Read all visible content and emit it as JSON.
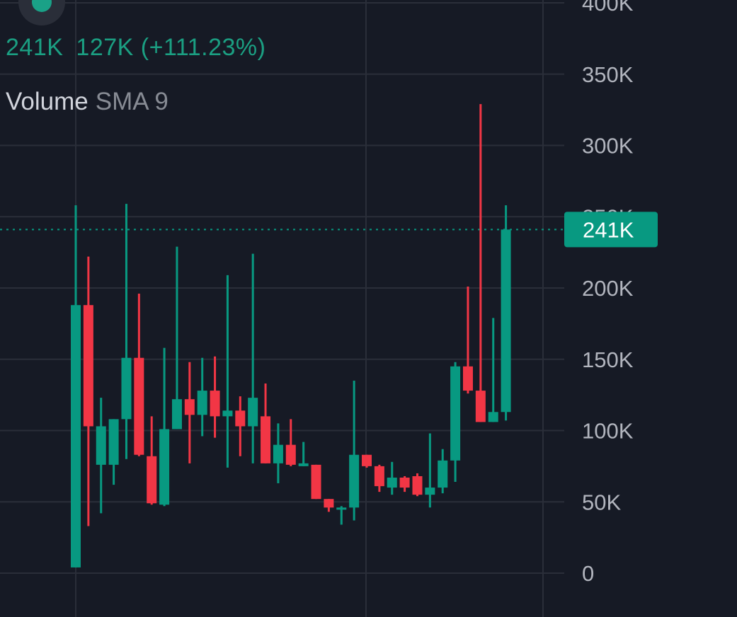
{
  "header": {
    "volume_value": "241K",
    "sma_value": "127K",
    "change_pct": "(+111.23%)",
    "indicator_name": "Volume",
    "indicator_params": "SMA 9"
  },
  "colors": {
    "background": "#161a25",
    "grid": "#2a2e39",
    "up": "#089981",
    "down": "#f23645",
    "axis_text": "#b2b5be",
    "badge": "#089981"
  },
  "chart_data": {
    "type": "candlestick",
    "title": "",
    "xlabel": "",
    "ylabel": "",
    "ylim": [
      0,
      400000
    ],
    "y_ticks": [
      0,
      50000,
      100000,
      150000,
      200000,
      250000,
      300000,
      350000,
      400000
    ],
    "y_tick_labels": [
      "0",
      "50K",
      "100K",
      "150K",
      "200K",
      "250K",
      "300K",
      "350K",
      "400K"
    ],
    "last_value": 241000,
    "last_value_label": "241K",
    "grid": true,
    "candles": [
      {
        "open": 4000,
        "high": 258000,
        "low": 4000,
        "close": 188000
      },
      {
        "open": 188000,
        "high": 222000,
        "low": 33000,
        "close": 103000
      },
      {
        "open": 76000,
        "high": 123000,
        "low": 42000,
        "close": 103000
      },
      {
        "open": 76000,
        "high": 108000,
        "low": 62000,
        "close": 108000
      },
      {
        "open": 108000,
        "high": 259000,
        "low": 80000,
        "close": 151000
      },
      {
        "open": 151000,
        "high": 196000,
        "low": 82000,
        "close": 83000
      },
      {
        "open": 82000,
        "high": 110000,
        "low": 48000,
        "close": 49000
      },
      {
        "open": 48000,
        "high": 158000,
        "low": 47000,
        "close": 101000
      },
      {
        "open": 101000,
        "high": 229000,
        "low": 101000,
        "close": 122000
      },
      {
        "open": 122000,
        "high": 148000,
        "low": 77000,
        "close": 111000
      },
      {
        "open": 111000,
        "high": 151000,
        "low": 96000,
        "close": 128000
      },
      {
        "open": 128000,
        "high": 152000,
        "low": 95000,
        "close": 110000
      },
      {
        "open": 110000,
        "high": 209000,
        "low": 74000,
        "close": 114000
      },
      {
        "open": 114000,
        "high": 124000,
        "low": 82000,
        "close": 103000
      },
      {
        "open": 103000,
        "high": 224000,
        "low": 77000,
        "close": 123000
      },
      {
        "open": 110000,
        "high": 133000,
        "low": 77000,
        "close": 77000
      },
      {
        "open": 77000,
        "high": 105000,
        "low": 63000,
        "close": 90000
      },
      {
        "open": 90000,
        "high": 108000,
        "low": 75000,
        "close": 76000
      },
      {
        "open": 75000,
        "high": 92000,
        "low": 75000,
        "close": 77000
      },
      {
        "open": 76000,
        "high": 76000,
        "low": 52000,
        "close": 52000
      },
      {
        "open": 52000,
        "high": 52000,
        "low": 43000,
        "close": 46000
      },
      {
        "open": 45000,
        "high": 47000,
        "low": 34000,
        "close": 46000
      },
      {
        "open": 46000,
        "high": 135000,
        "low": 37000,
        "close": 83000
      },
      {
        "open": 83000,
        "high": 83000,
        "low": 74000,
        "close": 75000
      },
      {
        "open": 75000,
        "high": 76000,
        "low": 57000,
        "close": 61000
      },
      {
        "open": 60000,
        "high": 78000,
        "low": 55000,
        "close": 67000
      },
      {
        "open": 67000,
        "high": 68000,
        "low": 57000,
        "close": 60000
      },
      {
        "open": 68000,
        "high": 70000,
        "low": 54000,
        "close": 55000
      },
      {
        "open": 55000,
        "high": 98000,
        "low": 46000,
        "close": 60000
      },
      {
        "open": 60000,
        "high": 87000,
        "low": 56000,
        "close": 79000
      },
      {
        "open": 79000,
        "high": 148000,
        "low": 64000,
        "close": 145000
      },
      {
        "open": 145000,
        "high": 201000,
        "low": 126000,
        "close": 128000
      },
      {
        "open": 128000,
        "high": 329000,
        "low": 106000,
        "close": 106000
      },
      {
        "open": 106000,
        "high": 179000,
        "low": 106000,
        "close": 113000
      },
      {
        "open": 113000,
        "high": 258000,
        "low": 107000,
        "close": 241000
      }
    ]
  }
}
